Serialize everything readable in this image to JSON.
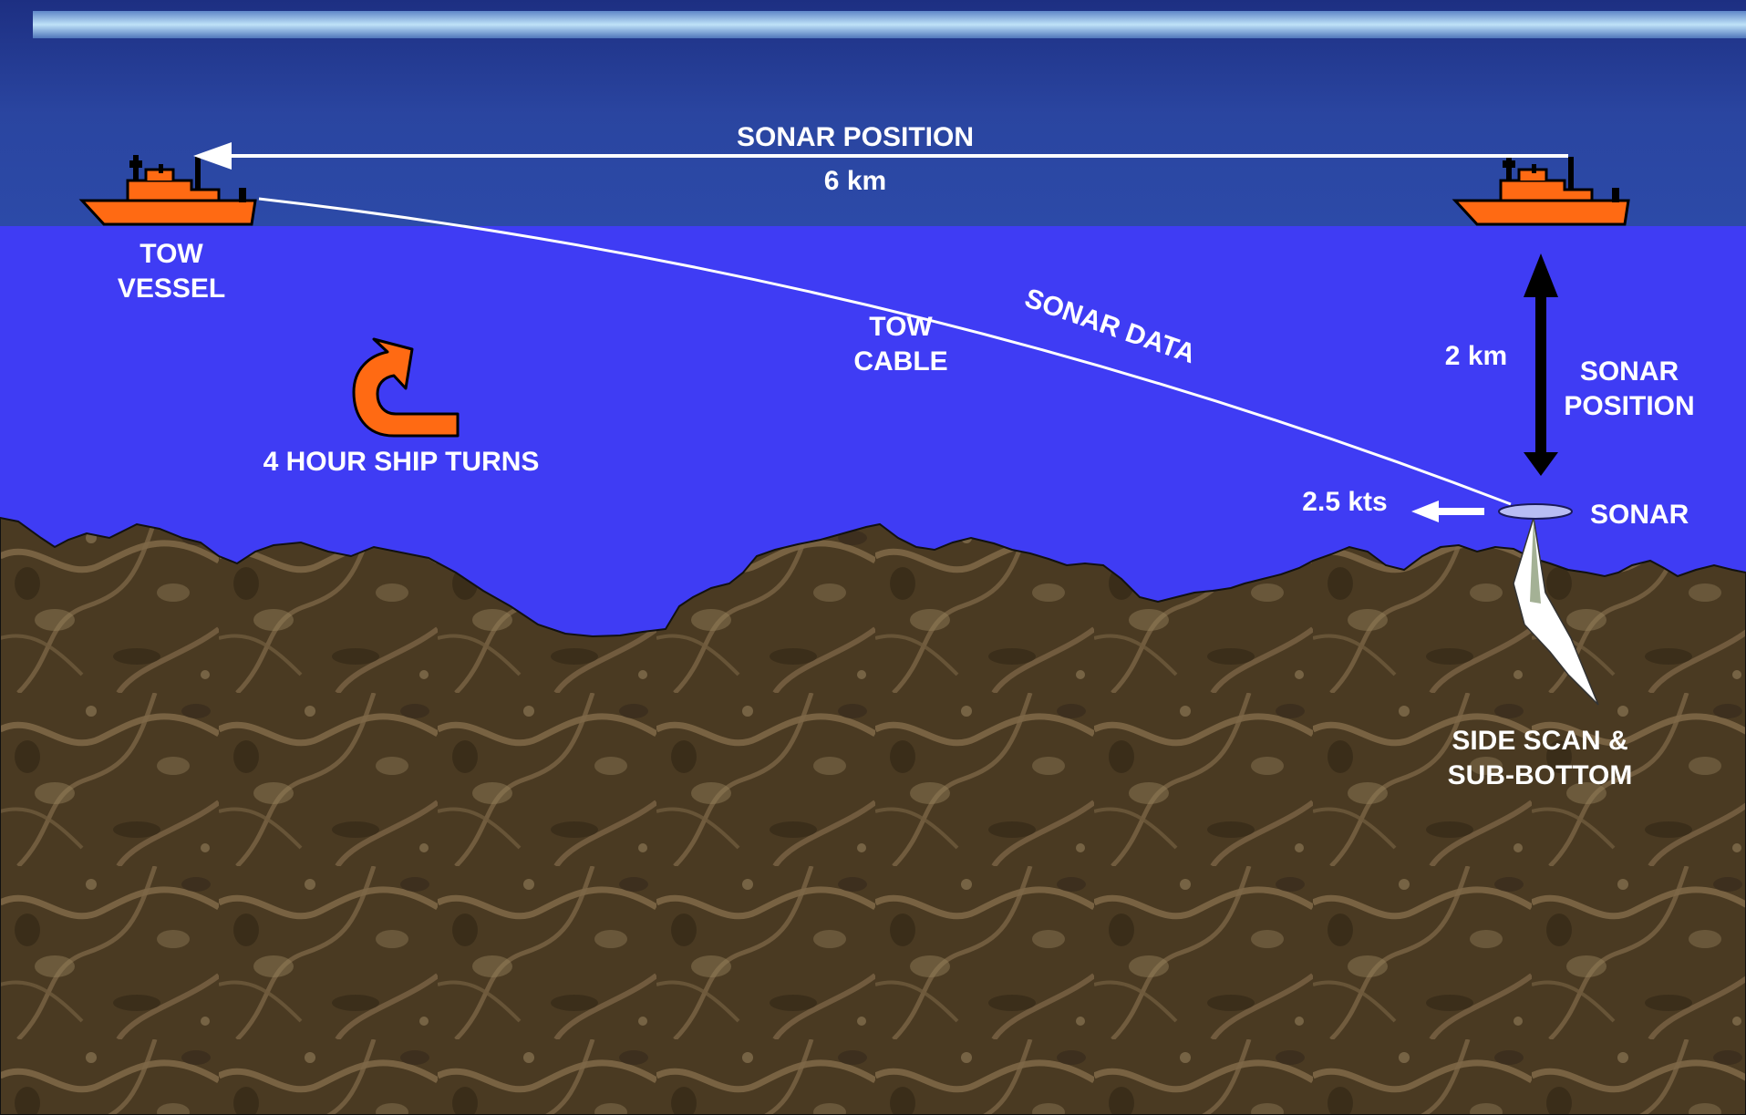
{
  "labels": {
    "sonar_position_top": "SONAR POSITION",
    "distance_horizontal": "6 km",
    "tow_vessel_line1": "TOW",
    "tow_vessel_line2": "VESSEL",
    "tow_cable_line1": "TOW",
    "tow_cable_line2": "CABLE",
    "sonar_data": "SONAR DATA",
    "ship_turns": "4 HOUR SHIP TURNS",
    "depth": "2 km",
    "sonar_position_right_line1": "SONAR",
    "sonar_position_right_line2": "POSITION",
    "speed": "2.5 kts",
    "sonar": "SONAR",
    "side_scan_line1": "SIDE SCAN &",
    "side_scan_line2": "SUB-BOTTOM"
  },
  "colors": {
    "sky": "#263f97",
    "water": "#3f3cf4",
    "seabed": "#4a3a22",
    "ship": "#ff6a13",
    "turn_arrow": "#ff6a13",
    "text": "#ffffff",
    "depth_arrow": "#000000",
    "sonar_fish": "#b8bdf4"
  },
  "icons": {
    "left_ship": "ship-icon",
    "right_ship": "ship-icon",
    "turn": "u-turn-arrow-icon",
    "sonar": "sonar-towfish-icon"
  }
}
